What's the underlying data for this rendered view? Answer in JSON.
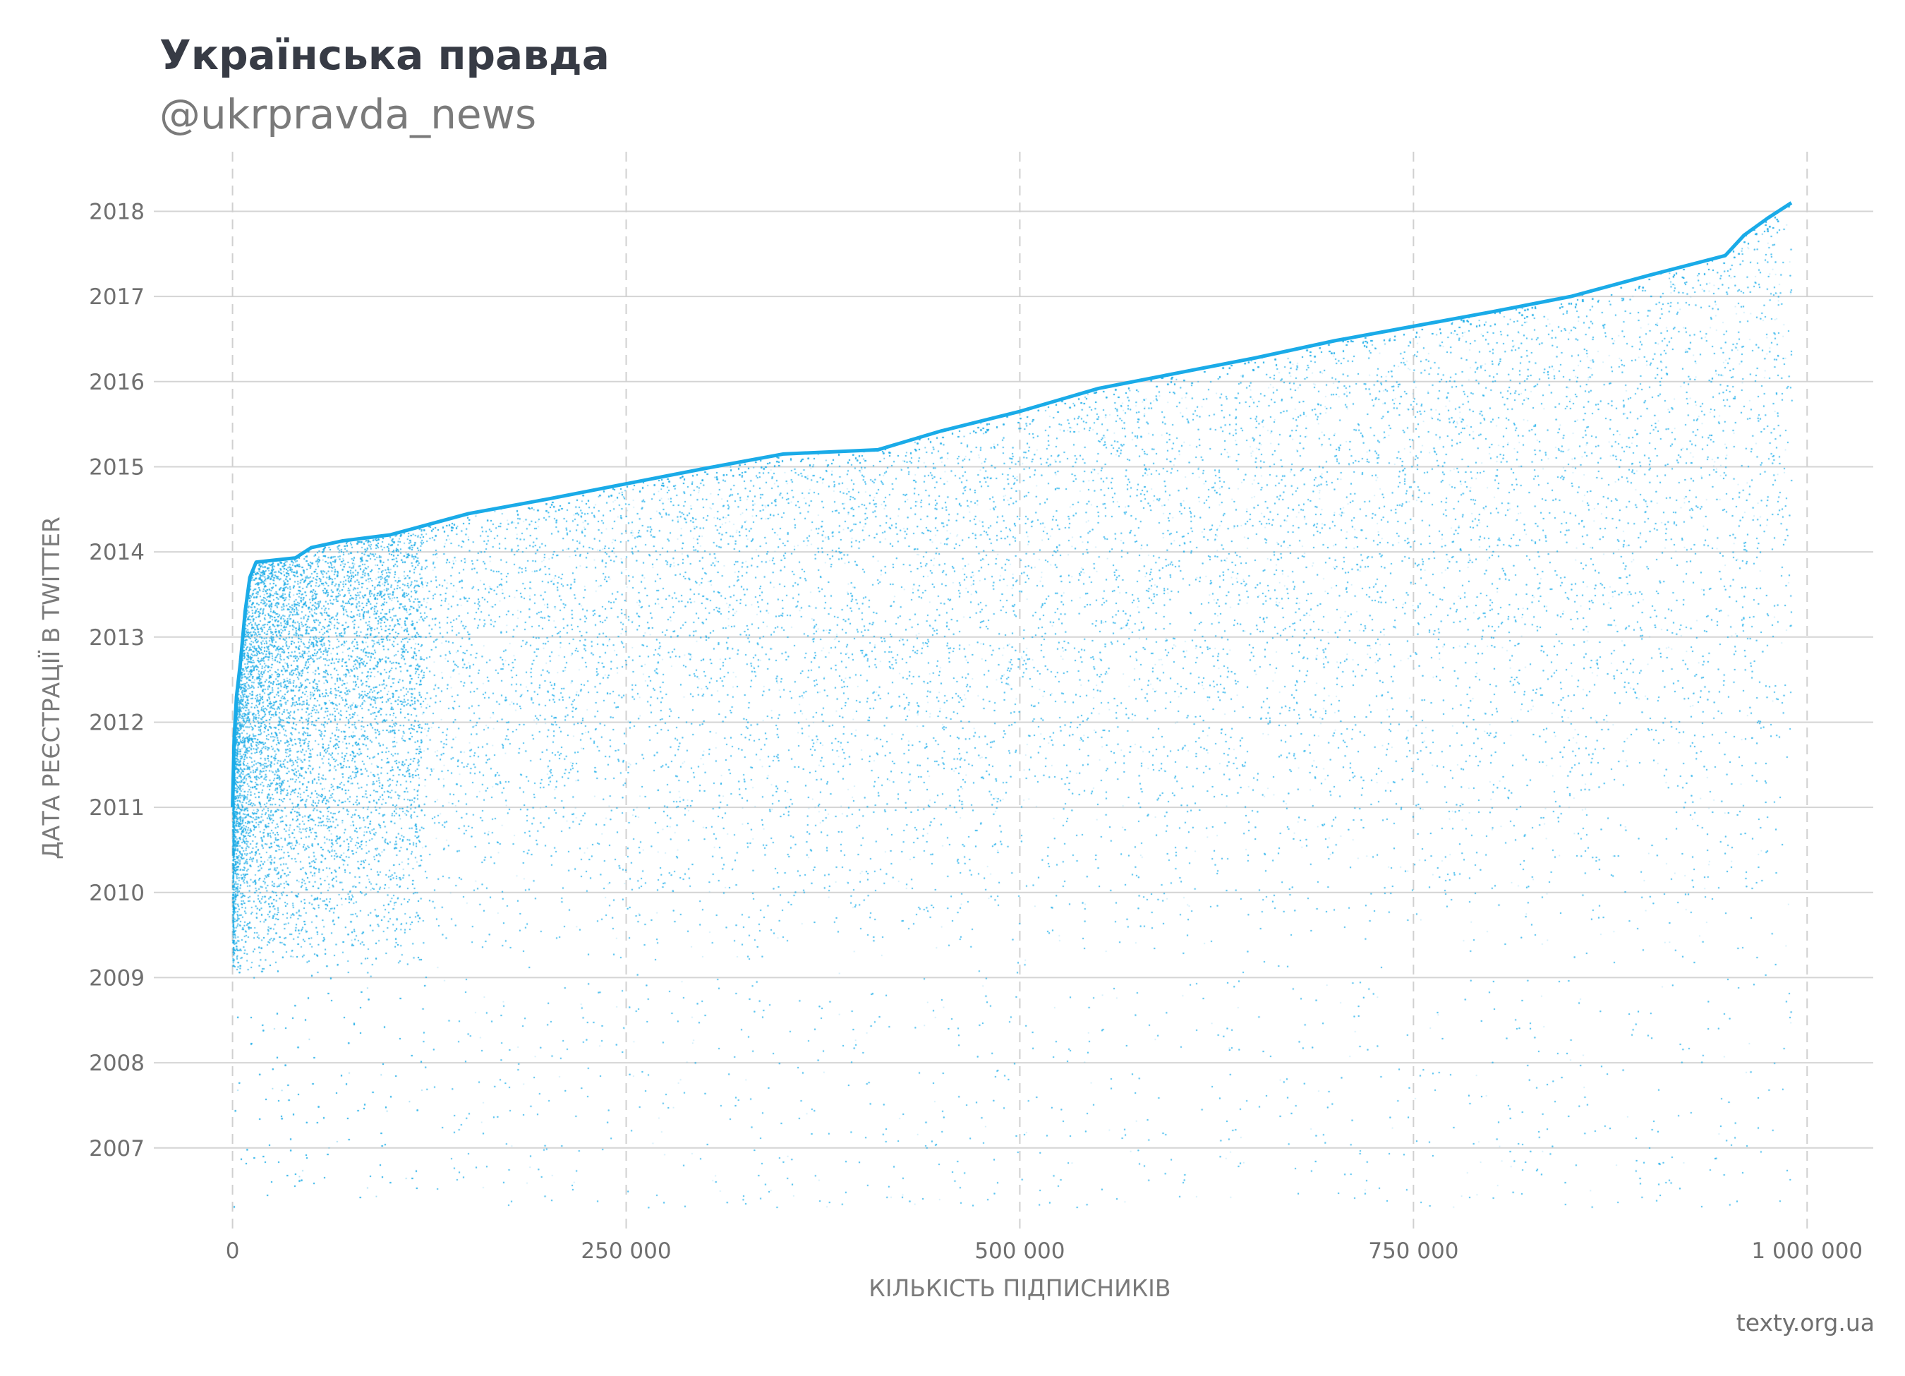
{
  "title": "Українська правда",
  "subtitle": "@ukrpravda_news",
  "credit": "texty.org.ua",
  "chart_data": {
    "type": "scatter",
    "xlabel": "КІЛЬКІСТЬ ПІДПИСНИКІВ",
    "ylabel": "ДАТА РЕЄСТРАЦІЇ В TWITTER",
    "xlim": [
      -50000,
      1042000
    ],
    "ylim": [
      2006.02,
      2018.7
    ],
    "x_ticks": [
      0,
      250000,
      500000,
      750000,
      1000000
    ],
    "x_tick_labels": [
      "0",
      "250 000",
      "500 000",
      "750 000",
      "1 000 000"
    ],
    "y_ticks": [
      2007,
      2008,
      2009,
      2010,
      2011,
      2012,
      2013,
      2014,
      2015,
      2016,
      2017,
      2018
    ],
    "y_tick_labels": [
      "2007",
      "2008",
      "2009",
      "2010",
      "2011",
      "2012",
      "2013",
      "2014",
      "2015",
      "2016",
      "2017",
      "2018"
    ],
    "grid": {
      "x": "dashed",
      "y": "solid"
    },
    "point_color": "#1aabe8",
    "upper_envelope": [
      [
        0,
        2011.0
      ],
      [
        1000,
        2011.8
      ],
      [
        2500,
        2012.3
      ],
      [
        5000,
        2012.7
      ],
      [
        8000,
        2013.3
      ],
      [
        11000,
        2013.7
      ],
      [
        15000,
        2013.88
      ],
      [
        40000,
        2013.93
      ],
      [
        50000,
        2014.05
      ],
      [
        70000,
        2014.13
      ],
      [
        100000,
        2014.2
      ],
      [
        150000,
        2014.45
      ],
      [
        200000,
        2014.62
      ],
      [
        250000,
        2014.8
      ],
      [
        300000,
        2014.98
      ],
      [
        350000,
        2015.15
      ],
      [
        410000,
        2015.2
      ],
      [
        450000,
        2015.42
      ],
      [
        500000,
        2015.65
      ],
      [
        550000,
        2015.92
      ],
      [
        600000,
        2016.1
      ],
      [
        650000,
        2016.28
      ],
      [
        700000,
        2016.48
      ],
      [
        750000,
        2016.65
      ],
      [
        800000,
        2016.82
      ],
      [
        850000,
        2017.0
      ],
      [
        900000,
        2017.25
      ],
      [
        948000,
        2017.48
      ],
      [
        960000,
        2017.72
      ],
      [
        975000,
        2017.92
      ],
      [
        990000,
        2018.1
      ]
    ],
    "lower_bound": 2009.0,
    "sparse_lower_bound": 2006.3
  }
}
